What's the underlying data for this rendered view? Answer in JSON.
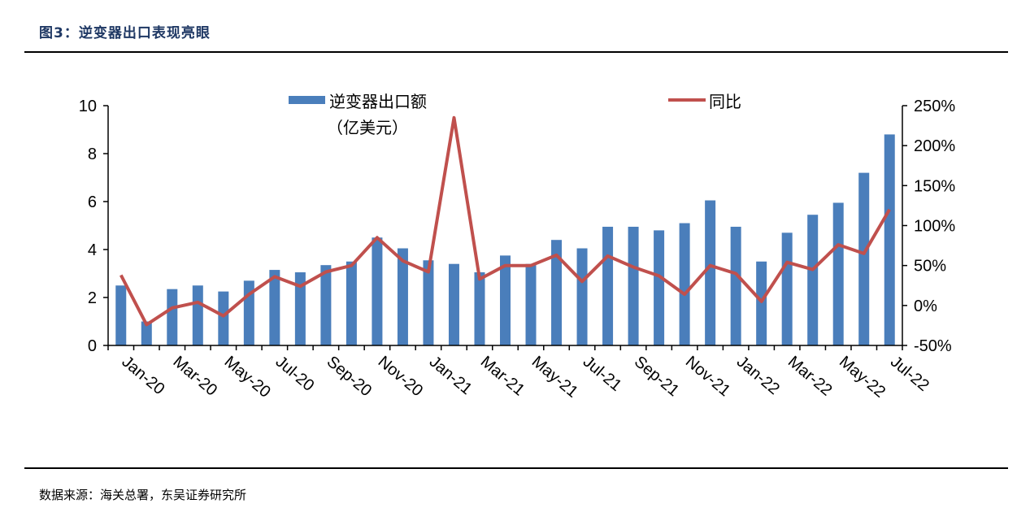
{
  "header": {
    "title": "图3：逆变器出口表现亮眼"
  },
  "footer": {
    "source": "数据来源：海关总署，东吴证券研究所"
  },
  "chart_data": {
    "type": "bar+line",
    "title": "",
    "categories": [
      "Jan-20",
      "Feb-20",
      "Mar-20",
      "Apr-20",
      "May-20",
      "Jun-20",
      "Jul-20",
      "Aug-20",
      "Sep-20",
      "Oct-20",
      "Nov-20",
      "Dec-20",
      "Jan-21",
      "Feb-21",
      "Mar-21",
      "Apr-21",
      "May-21",
      "Jun-21",
      "Jul-21",
      "Aug-21",
      "Sep-21",
      "Oct-21",
      "Nov-21",
      "Dec-21",
      "Jan-22",
      "Feb-22",
      "Mar-22",
      "Apr-22",
      "May-22",
      "Jun-22",
      "Jul-22"
    ],
    "x_tick_labels": [
      "Jan-20",
      "Mar-20",
      "May-20",
      "Jul-20",
      "Sep-20",
      "Nov-20",
      "Jan-21",
      "Mar-21",
      "May-21",
      "Jul-21",
      "Sep-21",
      "Nov-21",
      "Jan-22",
      "Mar-22",
      "May-22",
      "Jul-22"
    ],
    "series": [
      {
        "name": "逆变器出口额（亿美元）",
        "legend_line1": "逆变器出口额",
        "legend_line2": "（亿美元）",
        "type": "bar",
        "axis": "left",
        "color": "#4a7ebb",
        "values": [
          2.5,
          1.0,
          2.35,
          2.5,
          2.25,
          2.7,
          3.15,
          3.05,
          3.35,
          3.5,
          4.5,
          4.05,
          3.55,
          3.4,
          3.05,
          3.75,
          3.4,
          4.4,
          4.05,
          4.95,
          4.95,
          4.8,
          5.1,
          6.05,
          4.95,
          3.5,
          4.7,
          5.45,
          5.95,
          7.2,
          8.8
        ]
      },
      {
        "name": "同比",
        "type": "line",
        "axis": "right",
        "color": "#c0504d",
        "values": [
          38,
          -24,
          -3,
          4,
          -13,
          14,
          36,
          24,
          42,
          50,
          85,
          56,
          42,
          235,
          33,
          50,
          50,
          63,
          30,
          62,
          48,
          37,
          14,
          50,
          40,
          5,
          54,
          45,
          76,
          65,
          120
        ]
      }
    ],
    "left_axis": {
      "min": 0,
      "max": 10,
      "ticks": [
        "0",
        "2",
        "4",
        "6",
        "8",
        "10"
      ],
      "tick_values": [
        0,
        2,
        4,
        6,
        8,
        10
      ]
    },
    "right_axis": {
      "min": -50,
      "max": 250,
      "ticks": [
        "-50%",
        "0%",
        "50%",
        "100%",
        "150%",
        "200%",
        "250%"
      ],
      "tick_values": [
        -50,
        0,
        50,
        100,
        150,
        200,
        250
      ]
    },
    "legend_placement": "top"
  }
}
